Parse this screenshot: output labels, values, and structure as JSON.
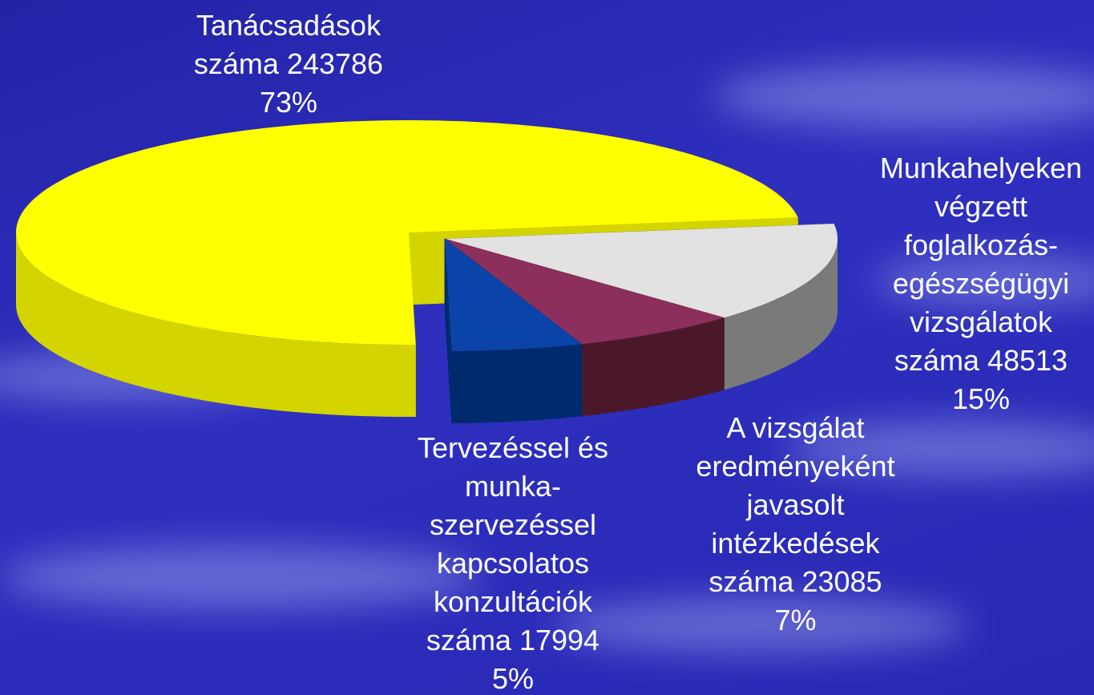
{
  "chart_data": {
    "type": "pie3d",
    "categories": [
      "Tanácsadások száma",
      "Munkahelyeken végzett foglalkozás-egészségügyi vizsgálatok száma",
      "A vizsgálat eredményeként javasolt intézkedések száma",
      "Tervezéssel és munka-szervezéssel kapcsolatos konzultációk száma"
    ],
    "values": [
      243786,
      48513,
      23085,
      17994
    ],
    "percent_labels": [
      "73%",
      "15%",
      "7%",
      "5%"
    ],
    "colors": [
      "#ffff00",
      "#e2e2e2",
      "#8c2f5c",
      "#0a44a8"
    ],
    "side_colors": [
      "#d4d400",
      "#7a7a7a",
      "#4a1828",
      "#002a6e"
    ]
  }
}
